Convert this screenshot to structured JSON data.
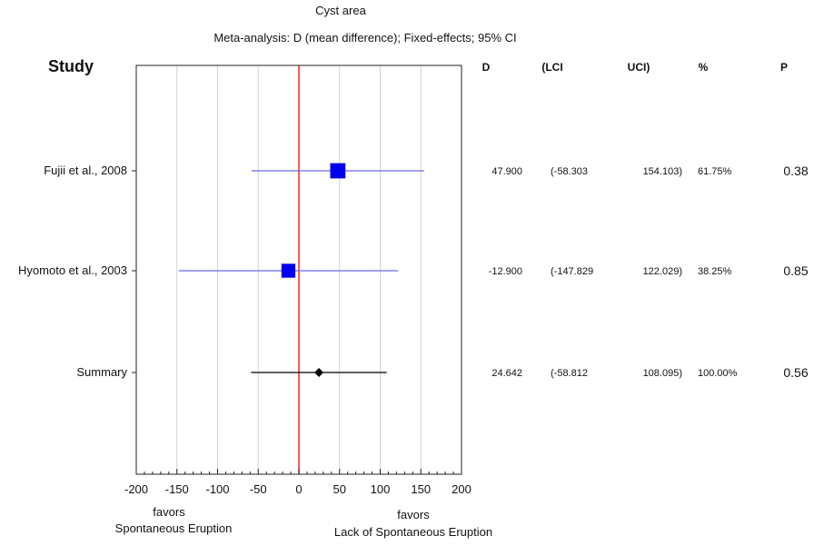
{
  "chart_data": {
    "type": "forest",
    "title": "Cyst area",
    "subtitle": "Meta-analysis: D (mean difference); Fixed-effects; 95% CI",
    "study_header": "Study",
    "column_headers": {
      "d": "D",
      "lci": "(LCI",
      "uci": "UCI)",
      "pct": "%",
      "p": "P"
    },
    "xlim": [
      -200,
      200
    ],
    "x_ticks": [
      -200,
      -150,
      -100,
      -50,
      0,
      50,
      100,
      150,
      200
    ],
    "x_tick_labels": [
      "-200",
      "-150",
      "-100",
      "-50",
      "0",
      "50",
      "100",
      "150",
      "200"
    ],
    "reference_line": 0,
    "favors_left": {
      "line1": "favors",
      "line2": "Spontaneous Eruption"
    },
    "favors_right": {
      "line1": "favors",
      "line2": "Lack of Spontaneous Eruption"
    },
    "studies": [
      {
        "name": "Fujii et al., 2008",
        "d": 47.9,
        "lci": -58.303,
        "uci": 154.103,
        "d_text": "47.900",
        "lci_text": "(-58.303",
        "uci_text": "154.103)",
        "pct_text": "61.75%",
        "p_text": "0.38",
        "weight": 61.75,
        "marker": "square",
        "color": "#0000ee"
      },
      {
        "name": "Hyomoto et al., 2003",
        "d": -12.9,
        "lci": -147.829,
        "uci": 122.029,
        "d_text": "-12.900",
        "lci_text": "(-147.829",
        "uci_text": "122.029)",
        "pct_text": "38.25%",
        "p_text": "0.85",
        "weight": 38.25,
        "marker": "square",
        "color": "#0000ee"
      },
      {
        "name": "Summary",
        "d": 24.642,
        "lci": -58.812,
        "uci": 108.095,
        "d_text": "24.642",
        "lci_text": "(-58.812",
        "uci_text": "108.095)",
        "pct_text": "100.00%",
        "p_text": "0.56",
        "weight": 100,
        "marker": "diamond",
        "color": "#000000"
      }
    ]
  },
  "colors": {
    "ci_line": "#6a6af0",
    "summary_line": "#000000",
    "ref_line": "#ff2020",
    "grid": "#d2d2d2"
  }
}
